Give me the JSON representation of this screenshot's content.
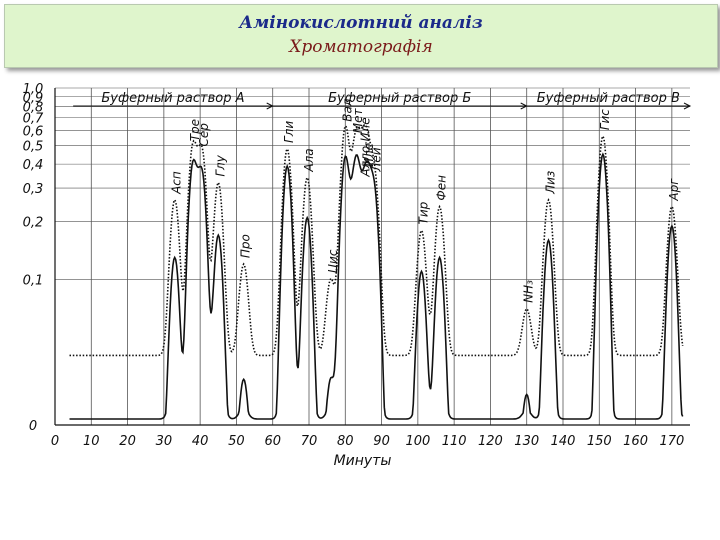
{
  "header": {
    "title": "Амінокислотний аналіз",
    "subtitle": "Хроматографія"
  },
  "chart_data": {
    "type": "line",
    "xlabel": "Минуты",
    "ylabel": "",
    "xlim": [
      0,
      175
    ],
    "ylim": [
      0,
      1.0
    ],
    "yscale": "log",
    "x_ticks": [
      "0",
      "10",
      "20",
      "30",
      "40",
      "50",
      "60",
      "70",
      "80",
      "90",
      "100",
      "110",
      "120",
      "130",
      "140",
      "150",
      "160",
      "170"
    ],
    "y_ticks": [
      "0",
      "0,1",
      "0,2",
      "0,3",
      "0,4",
      "0,5",
      "0,6",
      "0,7",
      "0,8",
      "0,9",
      "1,0"
    ],
    "grid": true,
    "buffers": [
      {
        "label": "Буферный раствор А",
        "from": 5,
        "to": 60
      },
      {
        "label": "Буферный раствор Б",
        "from": 60,
        "to": 130
      },
      {
        "label": "Буферный раствор В",
        "from": 130,
        "to": 175
      }
    ],
    "peaks": [
      {
        "label": "Асп",
        "x": 33
      },
      {
        "label": "Тре",
        "x": 38
      },
      {
        "label": "Сер",
        "x": 40.5
      },
      {
        "label": "Глу",
        "x": 45
      },
      {
        "label": "Про",
        "x": 52
      },
      {
        "label": "Гли",
        "x": 64
      },
      {
        "label": "Ала",
        "x": 69.5
      },
      {
        "label": "Цис",
        "x": 76
      },
      {
        "label": "Вал",
        "x": 80
      },
      {
        "label": "Мет",
        "x": 83
      },
      {
        "label": "Алло-Иле",
        "x": 85
      },
      {
        "label": "Иле",
        "x": 86
      },
      {
        "label": "Лей",
        "x": 88
      },
      {
        "label": "Тир",
        "x": 101
      },
      {
        "label": "Фен",
        "x": 106
      },
      {
        "label": "NH₃",
        "x": 130
      },
      {
        "label": "Лиз",
        "x": 136
      },
      {
        "label": "Гис",
        "x": 151
      },
      {
        "label": "Арг",
        "x": 170
      }
    ],
    "series": [
      {
        "curve": "upper",
        "baseline": 0.04,
        "peak_heights": [
          0.22,
          0.45,
          0.42,
          0.28,
          0.08,
          0.44,
          0.3,
          0.06,
          0.58,
          0.5,
          0.28,
          0.32,
          0.3,
          0.14,
          0.2,
          0.03,
          0.22,
          0.52,
          0.2
        ]
      },
      {
        "curve": "lower",
        "baseline": 0.01,
        "peak_heights": [
          0.12,
          0.38,
          0.34,
          0.16,
          0.02,
          0.38,
          0.2,
          0.02,
          0.42,
          0.4,
          0.1,
          0.28,
          0.26,
          0.1,
          0.12,
          0.015,
          0.15,
          0.44,
          0.18
        ]
      }
    ]
  }
}
